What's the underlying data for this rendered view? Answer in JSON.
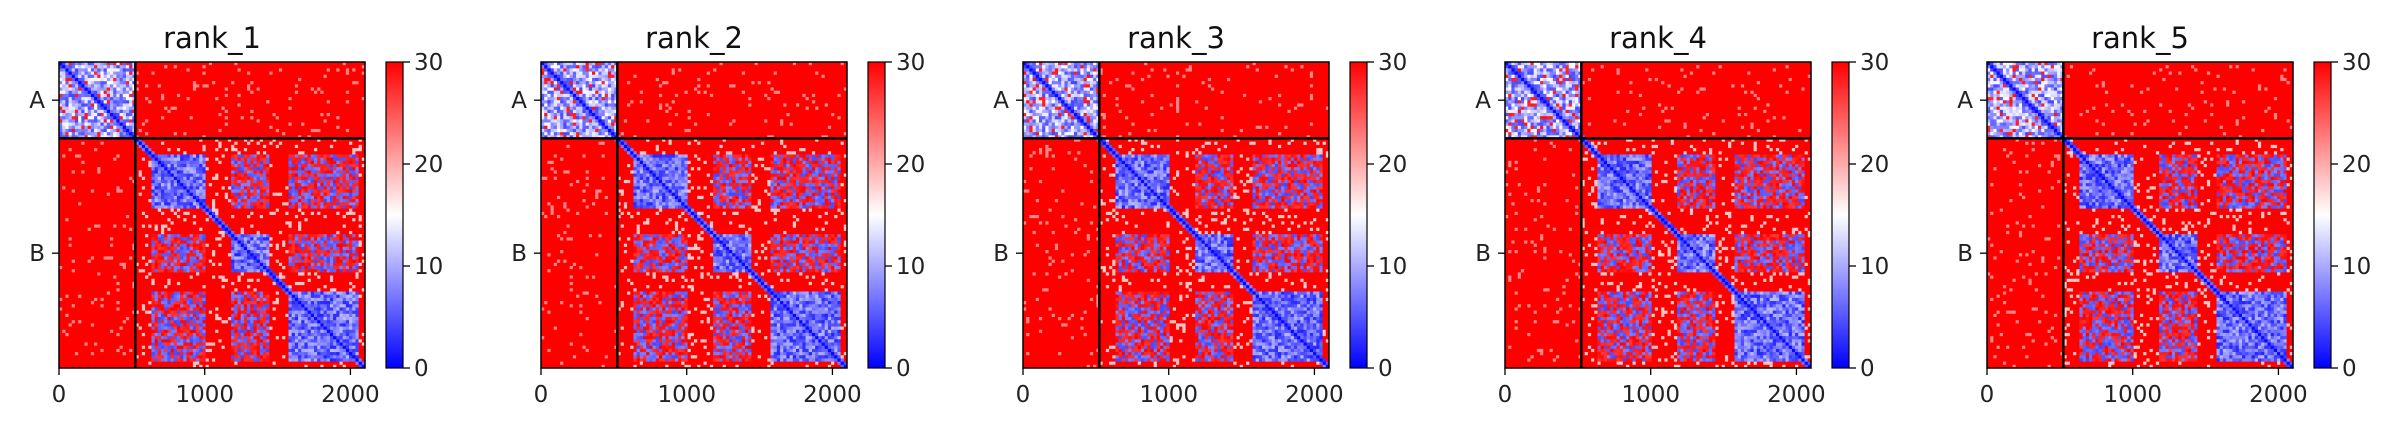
{
  "chart_data": [
    {
      "type": "heatmap",
      "title": "rank_1",
      "row_labels": [
        "A",
        "B"
      ],
      "chain_boundary": 524,
      "x_total": 2100,
      "xticks": [
        0,
        1000,
        2000
      ],
      "xtick_labels": [
        "0",
        "1000",
        "2000"
      ],
      "colorbar": {
        "vmin": 0,
        "vmax": 30,
        "ticks": [
          0,
          10,
          20,
          30
        ],
        "tick_labels": [
          "0",
          "10",
          "20",
          "30"
        ]
      },
      "variant": 1
    },
    {
      "type": "heatmap",
      "title": "rank_2",
      "row_labels": [
        "A",
        "B"
      ],
      "chain_boundary": 524,
      "x_total": 2100,
      "xticks": [
        0,
        1000,
        2000
      ],
      "xtick_labels": [
        "0",
        "1000",
        "2000"
      ],
      "colorbar": {
        "vmin": 0,
        "vmax": 30,
        "ticks": [
          0,
          10,
          20,
          30
        ],
        "tick_labels": [
          "0",
          "10",
          "20",
          "30"
        ]
      },
      "variant": 2
    },
    {
      "type": "heatmap",
      "title": "rank_3",
      "row_labels": [
        "A",
        "B"
      ],
      "chain_boundary": 524,
      "x_total": 2100,
      "xticks": [
        0,
        1000,
        2000
      ],
      "xtick_labels": [
        "0",
        "1000",
        "2000"
      ],
      "colorbar": {
        "vmin": 0,
        "vmax": 30,
        "ticks": [
          0,
          10,
          20,
          30
        ],
        "tick_labels": [
          "0",
          "10",
          "20",
          "30"
        ]
      },
      "variant": 3
    },
    {
      "type": "heatmap",
      "title": "rank_4",
      "row_labels": [
        "A",
        "B"
      ],
      "chain_boundary": 524,
      "x_total": 2100,
      "xticks": [
        0,
        1000,
        2000
      ],
      "xtick_labels": [
        "0",
        "1000",
        "2000"
      ],
      "colorbar": {
        "vmin": 0,
        "vmax": 30,
        "ticks": [
          0,
          10,
          20,
          30
        ],
        "tick_labels": [
          "0",
          "10",
          "20",
          "30"
        ]
      },
      "variant": 4
    },
    {
      "type": "heatmap",
      "title": "rank_5",
      "row_labels": [
        "A",
        "B"
      ],
      "chain_boundary": 524,
      "x_total": 2100,
      "xticks": [
        0,
        1000,
        2000
      ],
      "xtick_labels": [
        "0",
        "1000",
        "2000"
      ],
      "colorbar": {
        "vmin": 0,
        "vmax": 30,
        "ticks": [
          0,
          10,
          20,
          30
        ],
        "tick_labels": [
          "0",
          "10",
          "20",
          "30"
        ]
      },
      "variant": 5
    }
  ],
  "colormap": {
    "low": "#0000ff",
    "mid": "#ffffff",
    "high": "#ff0000"
  }
}
